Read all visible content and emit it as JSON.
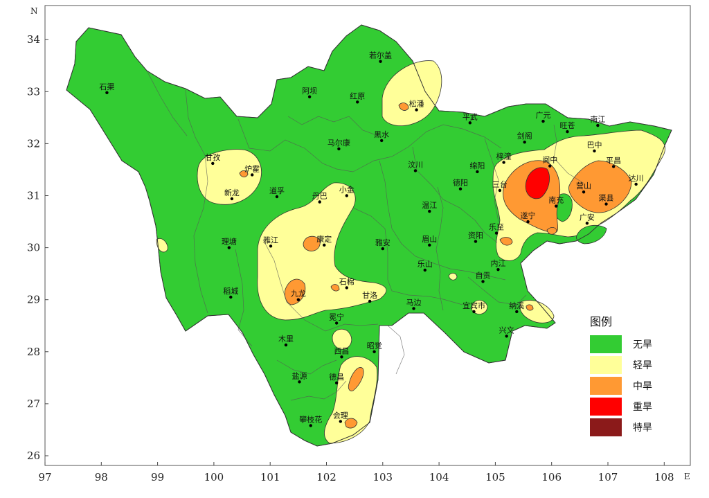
{
  "map": {
    "north_symbol": "N",
    "east_symbol": "E",
    "x_ticks": [
      "97",
      "98",
      "99",
      "100",
      "101",
      "102",
      "103",
      "104",
      "105",
      "106",
      "107",
      "108"
    ],
    "y_ticks": [
      "26",
      "27",
      "28",
      "29",
      "30",
      "31",
      "32",
      "33",
      "34"
    ],
    "lon_range": [
      97,
      109
    ],
    "lat_range": [
      25.8,
      34.6
    ]
  },
  "legend": {
    "title": "图例",
    "items": [
      {
        "label": "无旱",
        "color": "#33cc33"
      },
      {
        "label": "轻旱",
        "color": "#ffff99"
      },
      {
        "label": "中旱",
        "color": "#ff9933"
      },
      {
        "label": "重旱",
        "color": "#ff0000"
      },
      {
        "label": "特旱",
        "color": "#8b1a1a"
      }
    ]
  },
  "colors": {
    "none": "#33cc33",
    "light": "#ffff99",
    "moderate": "#ff9933",
    "severe": "#ff0000",
    "extreme": "#8b1a1a"
  },
  "stations": [
    {
      "name": "若尔盖",
      "lon": 102.96,
      "lat": 33.58
    },
    {
      "name": "石渠",
      "lon": 98.1,
      "lat": 32.98
    },
    {
      "name": "阿坝",
      "lon": 101.7,
      "lat": 32.9
    },
    {
      "name": "红原",
      "lon": 102.55,
      "lat": 32.8
    },
    {
      "name": "松潘",
      "lon": 103.6,
      "lat": 32.65
    },
    {
      "name": "平武",
      "lon": 104.55,
      "lat": 32.4
    },
    {
      "name": "广元",
      "lon": 105.85,
      "lat": 32.43
    },
    {
      "name": "旺苍",
      "lon": 106.28,
      "lat": 32.23
    },
    {
      "name": "南江",
      "lon": 106.82,
      "lat": 32.35
    },
    {
      "name": "马尔康",
      "lon": 102.22,
      "lat": 31.9
    },
    {
      "name": "黑水",
      "lon": 102.98,
      "lat": 32.06
    },
    {
      "name": "剑阁",
      "lon": 105.52,
      "lat": 32.03
    },
    {
      "name": "巴中",
      "lon": 106.76,
      "lat": 31.86
    },
    {
      "name": "甘孜",
      "lon": 99.98,
      "lat": 31.62
    },
    {
      "name": "炉霍",
      "lon": 100.68,
      "lat": 31.4
    },
    {
      "name": "汶川",
      "lon": 103.58,
      "lat": 31.48
    },
    {
      "name": "绵阳",
      "lon": 104.68,
      "lat": 31.46
    },
    {
      "name": "梓潼",
      "lon": 105.15,
      "lat": 31.64
    },
    {
      "name": "阆中",
      "lon": 105.97,
      "lat": 31.57
    },
    {
      "name": "平昌",
      "lon": 107.1,
      "lat": 31.56
    },
    {
      "name": "达川",
      "lon": 107.5,
      "lat": 31.22
    },
    {
      "name": "新龙",
      "lon": 100.32,
      "lat": 30.94
    },
    {
      "name": "道孚",
      "lon": 101.12,
      "lat": 30.98
    },
    {
      "name": "丹巴",
      "lon": 101.88,
      "lat": 30.88
    },
    {
      "name": "小金",
      "lon": 102.36,
      "lat": 31.0
    },
    {
      "name": "德阳",
      "lon": 104.38,
      "lat": 31.13
    },
    {
      "name": "三台",
      "lon": 105.08,
      "lat": 31.1
    },
    {
      "name": "南充",
      "lon": 106.08,
      "lat": 30.8
    },
    {
      "name": "营山",
      "lon": 106.57,
      "lat": 31.07
    },
    {
      "name": "渠县",
      "lon": 106.97,
      "lat": 30.84
    },
    {
      "name": "温江",
      "lon": 103.83,
      "lat": 30.7
    },
    {
      "name": "遂宁",
      "lon": 105.58,
      "lat": 30.5
    },
    {
      "name": "广安",
      "lon": 106.63,
      "lat": 30.47
    },
    {
      "name": "乐至",
      "lon": 105.02,
      "lat": 30.28
    },
    {
      "name": "理塘",
      "lon": 100.27,
      "lat": 30.0
    },
    {
      "name": "雅江",
      "lon": 101.01,
      "lat": 30.03
    },
    {
      "name": "康定",
      "lon": 101.96,
      "lat": 30.05
    },
    {
      "name": "雅安",
      "lon": 103.0,
      "lat": 29.98
    },
    {
      "name": "眉山",
      "lon": 103.83,
      "lat": 30.05
    },
    {
      "name": "资阳",
      "lon": 104.65,
      "lat": 30.12
    },
    {
      "name": "内江",
      "lon": 105.05,
      "lat": 29.58
    },
    {
      "name": "乐山",
      "lon": 103.75,
      "lat": 29.57
    },
    {
      "name": "自贡",
      "lon": 104.78,
      "lat": 29.35
    },
    {
      "name": "稻城",
      "lon": 100.3,
      "lat": 29.05
    },
    {
      "name": "九龙",
      "lon": 101.5,
      "lat": 29.0
    },
    {
      "name": "石棉",
      "lon": 102.36,
      "lat": 29.23
    },
    {
      "name": "甘洛",
      "lon": 102.77,
      "lat": 28.97
    },
    {
      "name": "马边",
      "lon": 103.55,
      "lat": 28.83
    },
    {
      "name": "宜宾市",
      "lon": 104.62,
      "lat": 28.77
    },
    {
      "name": "纳溪",
      "lon": 105.38,
      "lat": 28.77
    },
    {
      "name": "冕宁",
      "lon": 102.18,
      "lat": 28.55
    },
    {
      "name": "兴文",
      "lon": 105.2,
      "lat": 28.3
    },
    {
      "name": "木里",
      "lon": 101.28,
      "lat": 28.13
    },
    {
      "name": "西昌",
      "lon": 102.27,
      "lat": 27.9
    },
    {
      "name": "昭觉",
      "lon": 102.85,
      "lat": 28.0
    },
    {
      "name": "盐源",
      "lon": 101.52,
      "lat": 27.42
    },
    {
      "name": "德昌",
      "lon": 102.18,
      "lat": 27.4
    },
    {
      "name": "攀枝花",
      "lon": 101.72,
      "lat": 26.58
    },
    {
      "name": "会理",
      "lon": 102.25,
      "lat": 26.66
    }
  ]
}
